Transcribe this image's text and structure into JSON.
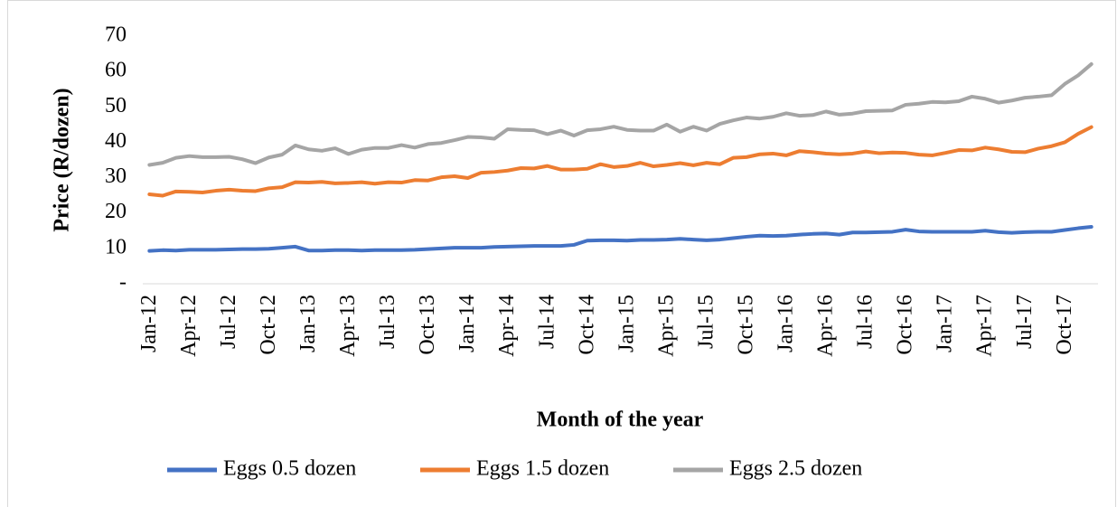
{
  "chart_data": {
    "type": "line",
    "y_label": "Price (R/dozen)",
    "x_label": "Month of the year",
    "categories": [
      "Jan-12",
      null,
      null,
      "Apr-12",
      null,
      null,
      "Jul-12",
      null,
      null,
      "Oct-12",
      null,
      null,
      "Jan-13",
      null,
      null,
      "Apr-13",
      null,
      null,
      "Jul-13",
      null,
      null,
      "Oct-13",
      null,
      null,
      "Jan-14",
      null,
      null,
      "Apr-14",
      null,
      null,
      "Jul-14",
      null,
      null,
      "Oct-14",
      null,
      null,
      "Jan-15",
      null,
      null,
      "Apr-15",
      null,
      null,
      "Jul-15",
      null,
      null,
      "Oct-15",
      null,
      null,
      "Jan-16",
      null,
      null,
      "Apr-16",
      null,
      null,
      "Jul-16",
      null,
      null,
      "Oct-16",
      null,
      null,
      "Jan-17",
      null,
      null,
      "Apr-17",
      null,
      null,
      "Jul-17",
      null,
      null,
      "Oct-17",
      null,
      null
    ],
    "series": [
      {
        "name": "Eggs 0.5 dozen",
        "color": "#4472c4",
        "values": [
          9.3,
          9.5,
          9.4,
          9.6,
          9.6,
          9.6,
          9.7,
          9.8,
          9.8,
          9.9,
          10.2,
          10.5,
          9.4,
          9.4,
          9.5,
          9.5,
          9.4,
          9.5,
          9.5,
          9.5,
          9.6,
          9.8,
          10.0,
          10.2,
          10.2,
          10.2,
          10.4,
          10.5,
          10.6,
          10.7,
          10.7,
          10.7,
          11.0,
          12.2,
          12.3,
          12.3,
          12.2,
          12.4,
          12.4,
          12.5,
          12.7,
          12.5,
          12.3,
          12.5,
          12.9,
          13.3,
          13.6,
          13.5,
          13.6,
          13.9,
          14.1,
          14.2,
          13.9,
          14.5,
          14.5,
          14.6,
          14.7,
          15.3,
          14.8,
          14.7,
          14.7,
          14.7,
          14.7,
          15.0,
          14.6,
          14.4,
          14.6,
          14.7,
          14.7,
          15.2,
          15.7,
          16.1
        ]
      },
      {
        "name": "Eggs 1.5 dozen",
        "color": "#ed7d31",
        "values": [
          25.3,
          24.9,
          26.1,
          26.0,
          25.8,
          26.3,
          26.6,
          26.3,
          26.2,
          27.0,
          27.3,
          28.7,
          28.6,
          28.8,
          28.4,
          28.5,
          28.7,
          28.3,
          28.7,
          28.6,
          29.3,
          29.2,
          30.1,
          30.4,
          29.9,
          31.4,
          31.6,
          32.0,
          32.7,
          32.6,
          33.3,
          32.3,
          32.3,
          32.5,
          33.8,
          33.0,
          33.3,
          34.2,
          33.2,
          33.6,
          34.1,
          33.5,
          34.2,
          33.8,
          35.6,
          35.8,
          36.6,
          36.8,
          36.3,
          37.5,
          37.2,
          36.8,
          36.6,
          36.8,
          37.4,
          36.9,
          37.1,
          37.0,
          36.5,
          36.3,
          37.0,
          37.8,
          37.7,
          38.5,
          38.0,
          37.3,
          37.2,
          38.2,
          38.9,
          40.0,
          42.4,
          44.3
        ]
      },
      {
        "name": "Eggs 2.5 dozen",
        "color": "#a5a5a5",
        "values": [
          33.6,
          34.2,
          35.6,
          36.1,
          35.8,
          35.8,
          35.9,
          35.2,
          34.1,
          35.7,
          36.5,
          39.1,
          38.0,
          37.6,
          38.3,
          36.7,
          37.9,
          38.4,
          38.4,
          39.2,
          38.5,
          39.5,
          39.8,
          40.6,
          41.5,
          41.4,
          41.0,
          43.7,
          43.5,
          43.4,
          42.3,
          43.3,
          41.9,
          43.4,
          43.7,
          44.4,
          43.5,
          43.3,
          43.3,
          45.0,
          43.0,
          44.4,
          43.3,
          45.2,
          46.2,
          47.0,
          46.7,
          47.2,
          48.2,
          47.5,
          47.7,
          48.7,
          47.8,
          48.1,
          48.8,
          48.9,
          49.0,
          50.6,
          50.9,
          51.4,
          51.3,
          51.6,
          52.9,
          52.3,
          51.2,
          51.8,
          52.6,
          52.9,
          53.3,
          56.5,
          58.9,
          62.1
        ]
      }
    ],
    "ylim": [
      0,
      70
    ],
    "yticks": [
      {
        "value": 0,
        "label": "-"
      },
      10,
      20,
      30,
      40,
      50,
      60,
      70
    ],
    "grid": false,
    "legend": "bottom"
  }
}
